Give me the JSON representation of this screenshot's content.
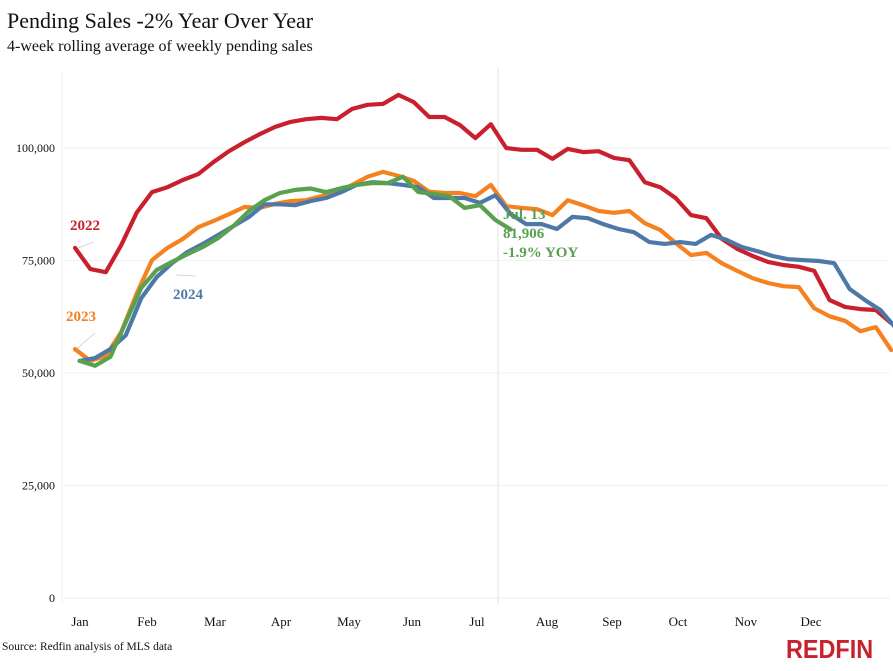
{
  "header": {
    "title": "Pending Sales -2% Year Over Year",
    "subtitle": "4-week rolling average of weekly pending sales"
  },
  "footer": {
    "source": "Source: Redfin analysis of MLS data",
    "logo": "REDFIN"
  },
  "colors": {
    "2022": "#c8212d",
    "2023": "#f58220",
    "2024_blue": "#4e79a7",
    "2024_green": "#59a14f",
    "logo": "#c8212d"
  },
  "chart_data": {
    "type": "line",
    "title": "Pending Sales -2% Year Over Year",
    "subtitle": "4-week rolling average of weekly pending sales",
    "xlabel": "",
    "ylabel": "",
    "x_tick_labels": [
      "Jan",
      "Feb",
      "Mar",
      "Apr",
      "May",
      "Jun",
      "Jul",
      "Aug",
      "Sep",
      "Oct",
      "Nov",
      "Dec"
    ],
    "y_tick_labels": [
      "0",
      "25,000",
      "50,000",
      "75,000",
      "100,000"
    ],
    "y_ticks": [
      0,
      25000,
      50000,
      75000,
      100000
    ],
    "ylim": [
      0,
      113000
    ],
    "x_unit": "week of year",
    "grid": true,
    "series": [
      {
        "name": "2022",
        "color": "#c8212d",
        "values": [
          77800,
          73100,
          72400,
          78400,
          85600,
          90200,
          91300,
          92900,
          94200,
          96900,
          99300,
          101300,
          103100,
          104700,
          105800,
          106400,
          106700,
          106400,
          108700,
          109600,
          109800,
          111800,
          110200,
          106900,
          106900,
          105100,
          102200,
          105300,
          100000,
          99600,
          99600,
          97600,
          99800,
          99100,
          99300,
          97800,
          97300,
          92400,
          91300,
          88900,
          85100,
          84400,
          79800,
          77600,
          76000,
          74700,
          74000,
          73600,
          72700,
          66200,
          64700,
          64200,
          64000,
          61100,
          60700
        ]
      },
      {
        "name": "2023",
        "color": "#f58220",
        "values": [
          55300,
          52700,
          53800,
          59100,
          67600,
          75100,
          77800,
          79800,
          82400,
          83800,
          85300,
          86900,
          86700,
          87600,
          88200,
          88400,
          89300,
          90200,
          91800,
          93600,
          94700,
          93800,
          92700,
          90300,
          90000,
          90000,
          89300,
          91800,
          87100,
          86700,
          86400,
          85100,
          88400,
          87300,
          86000,
          85600,
          86000,
          83300,
          81800,
          78900,
          76200,
          76700,
          74400,
          72700,
          71100,
          70000,
          69300,
          69100,
          64400,
          62600,
          61600,
          59300,
          60200,
          55100
        ]
      },
      {
        "name": "2024",
        "color": "#4e79a7",
        "values": [
          52700,
          53300,
          55300,
          58400,
          66600,
          71300,
          74400,
          76900,
          78700,
          80700,
          82700,
          84700,
          87500,
          87500,
          87300,
          88200,
          88900,
          90200,
          91800,
          92400,
          92200,
          91800,
          91300,
          88900,
          88900,
          88900,
          87800,
          89500,
          85300,
          83100,
          83100,
          82000,
          84700,
          84400,
          83100,
          82000,
          81300,
          79100,
          78700,
          79100,
          78700,
          80700,
          79600,
          78000,
          77100,
          76000,
          75300,
          75100,
          74900,
          74400,
          68700,
          66200,
          64000,
          60000,
          56400
        ]
      },
      {
        "name": "2024 (green)",
        "color": "#59a14f",
        "values": [
          52700,
          51600,
          53600,
          61300,
          68900,
          72900,
          74700,
          76400,
          78000,
          80000,
          82700,
          86000,
          88400,
          90000,
          90700,
          91000,
          90200,
          91100,
          91800,
          92200,
          92200,
          93600,
          90200,
          89800,
          89300,
          86700,
          87300,
          84000,
          81900
        ]
      }
    ],
    "annotations": [
      {
        "text": "2022",
        "series": "2022"
      },
      {
        "text": "2023",
        "series": "2023"
      },
      {
        "text": "2024",
        "series": "2024"
      },
      {
        "text": "Jul. 13",
        "series": "2024 (green)"
      },
      {
        "text": "81,906",
        "series": "2024 (green)"
      },
      {
        "text": "-1.9% YOY",
        "series": "2024 (green)"
      }
    ]
  }
}
